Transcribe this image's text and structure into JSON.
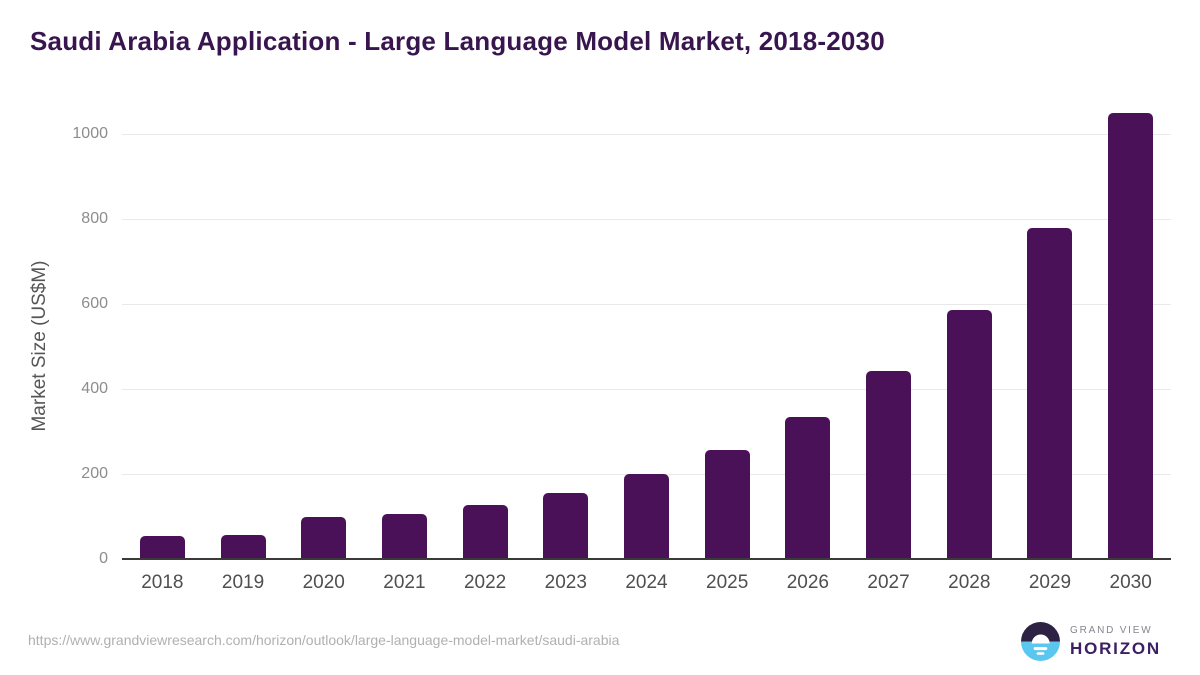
{
  "header": {
    "title": "Saudi Arabia Application - Large Language Model Market, 2018-2030"
  },
  "chart_data": {
    "type": "bar",
    "title": "Saudi Arabia Application - Large Language Model Market, 2018-2030",
    "categories": [
      "2018",
      "2019",
      "2020",
      "2021",
      "2022",
      "2023",
      "2024",
      "2025",
      "2026",
      "2027",
      "2028",
      "2029",
      "2030"
    ],
    "values": [
      54,
      57,
      100,
      105,
      128,
      155,
      200,
      257,
      335,
      442,
      585,
      780,
      1050
    ],
    "xlabel": "",
    "ylabel": "Market Size (US$M)",
    "ylim": [
      0,
      1100
    ],
    "yticks": [
      0,
      200,
      400,
      600,
      800,
      1000
    ],
    "grid": true,
    "legend": false,
    "bar_color": "#4a1158",
    "gridline_color": "#e9e9e9",
    "axis_line_color": "#3a3a3a"
  },
  "footer": {
    "source_url": "https://www.grandviewresearch.com/horizon/outlook/large-language-model-market/saudi-arabia",
    "logo": {
      "brand_line1": "GRAND VIEW",
      "brand_line2": "HORIZON",
      "icon": "sunrise-horizon-icon",
      "icon_top_color": "#2d2244",
      "icon_bottom_color": "#5bc7ee"
    }
  },
  "colors": {
    "title": "#38154e",
    "y_tick": "#8d8d8d",
    "x_tick": "#4f4f4f",
    "axis_title": "#565656",
    "url_text": "#b0b0b0"
  }
}
